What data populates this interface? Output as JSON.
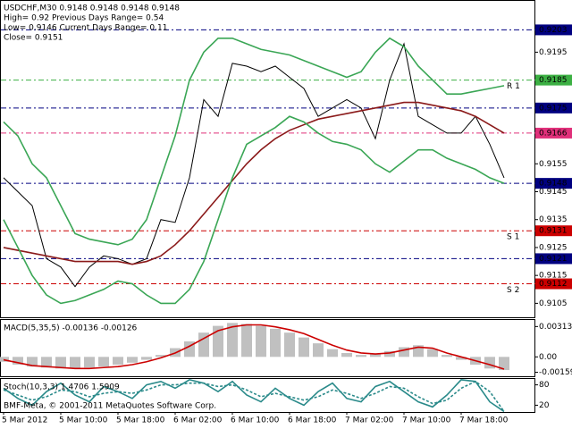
{
  "chart_data": [
    {
      "type": "line",
      "annotations": [
        "USDCHF,M30  0.9148 0.9148 0.9148 0.9148",
        "High= 0.92    Previous Days Range= 0.54",
        "Low= 0.9146    Current Days Range= 0.11",
        "Close= 0.9151"
      ],
      "categories": [
        "5 Mar 2012",
        null,
        null,
        null,
        "5 Mar 10:00",
        null,
        null,
        null,
        "5 Mar 18:00",
        null,
        null,
        null,
        "6 Mar 02:00",
        null,
        null,
        null,
        "6 Mar 10:00",
        null,
        null,
        null,
        "6 Mar 18:00",
        null,
        null,
        null,
        "7 Mar 02:00",
        null,
        null,
        null,
        "7 Mar 10:00",
        null,
        null,
        null,
        "7 Mar 18:00",
        null,
        null,
        null
      ],
      "series": [
        {
          "color": "#000000",
          "values": [
            0.915,
            0.9145,
            0.914,
            0.9121,
            0.9118,
            0.9111,
            0.9118,
            0.9122,
            0.9121,
            0.9119,
            0.9121,
            0.9135,
            0.9134,
            0.915,
            0.9178,
            0.9172,
            0.9191,
            0.919,
            0.9188,
            0.919,
            0.9186,
            0.9182,
            0.9172,
            0.9175,
            0.9178,
            0.9175,
            0.9164,
            0.9185,
            0.9198,
            0.9172,
            0.9169,
            0.9166,
            0.9166,
            0.9172,
            0.9162,
            0.915
          ]
        },
        {
          "color": "#8b1a1a",
          "values": [
            0.9125,
            0.9124,
            0.9123,
            0.9122,
            0.9121,
            0.912,
            0.912,
            0.912,
            0.912,
            0.9119,
            0.912,
            0.9122,
            0.9126,
            0.9131,
            0.9137,
            0.9143,
            0.9149,
            0.9155,
            0.916,
            0.9164,
            0.9167,
            0.9169,
            0.9171,
            0.9172,
            0.9173,
            0.9174,
            0.9175,
            0.9176,
            0.9177,
            0.9177,
            0.9176,
            0.9175,
            0.9174,
            0.9172,
            0.9169,
            0.9166
          ]
        },
        {
          "color": "#3aa655",
          "values": [
            0.917,
            0.9165,
            0.9155,
            0.915,
            0.914,
            0.913,
            0.9128,
            0.9127,
            0.9126,
            0.9128,
            0.9135,
            0.915,
            0.9165,
            0.9185,
            0.9195,
            0.92,
            0.92,
            0.9198,
            0.9196,
            0.9195,
            0.9194,
            0.9192,
            0.919,
            0.9188,
            0.9186,
            0.9188,
            0.9195,
            0.92,
            0.9197,
            0.919,
            0.9185,
            0.918,
            0.918,
            0.9181,
            0.9182,
            0.9183
          ]
        },
        {
          "color": "#3aa655",
          "values": [
            0.9135,
            0.9125,
            0.9115,
            0.9108,
            0.9105,
            0.9106,
            0.9108,
            0.911,
            0.9113,
            0.9112,
            0.9108,
            0.9105,
            0.9105,
            0.911,
            0.912,
            0.9135,
            0.915,
            0.9162,
            0.9165,
            0.9168,
            0.9172,
            0.917,
            0.9166,
            0.9163,
            0.9162,
            0.916,
            0.9155,
            0.9152,
            0.9156,
            0.916,
            0.916,
            0.9157,
            0.9155,
            0.9153,
            0.915,
            0.9148
          ]
        }
      ],
      "levels": [
        {
          "value": 0.9203,
          "color": "#000080"
        },
        {
          "value": 0.9185,
          "color": "#3cb043",
          "label": "R 1"
        },
        {
          "value": 0.9175,
          "color": "#000080"
        },
        {
          "value": 0.9166,
          "color": "#e0307a"
        },
        {
          "value": 0.9148,
          "color": "#000080"
        },
        {
          "value": 0.9131,
          "color": "#cc0000",
          "label": "S 1"
        },
        {
          "value": 0.9121,
          "color": "#000080"
        },
        {
          "value": 0.9112,
          "color": "#cc0000",
          "label": "S 2"
        }
      ],
      "ylim": [
        0.91,
        0.92137
      ],
      "yticks": [
        0.9105,
        0.9115,
        0.9125,
        0.9135,
        0.9145,
        0.9155,
        0.9195
      ]
    },
    {
      "type": "bar",
      "title": "MACD(5,35,5) -0.00136 -0.00126",
      "color": "#c0c0c0",
      "values": [
        -0.0005,
        -0.0008,
        -0.001,
        -0.0011,
        -0.0012,
        -0.0012,
        -0.0011,
        -0.001,
        -0.0008,
        -0.0006,
        -0.0003,
        0.0002,
        0.0009,
        0.0016,
        0.0025,
        0.0032,
        0.0035,
        0.0034,
        0.0032,
        0.0029,
        0.0025,
        0.002,
        0.0014,
        0.0008,
        0.0004,
        0.0002,
        0.0003,
        0.0006,
        0.001,
        0.0012,
        0.0008,
        0.0002,
        -0.0003,
        -0.0008,
        -0.0012,
        -0.00136
      ],
      "series": [
        {
          "color": "#cc0000",
          "values": [
            -0.0003,
            -0.0006,
            -0.0009,
            -0.001,
            -0.0011,
            -0.0012,
            -0.0012,
            -0.0011,
            -0.001,
            -0.0008,
            -0.0005,
            -0.0001,
            0.0004,
            0.0011,
            0.0019,
            0.0027,
            0.0031,
            0.0033,
            0.0033,
            0.0031,
            0.0028,
            0.0024,
            0.0018,
            0.0012,
            0.0007,
            0.0004,
            0.0003,
            0.0004,
            0.0007,
            0.001,
            0.0009,
            0.0004,
            0.0,
            -0.0004,
            -0.0008,
            -0.00126
          ]
        }
      ],
      "ylim": [
        -0.002,
        0.0039
      ],
      "yticks": [
        0.00313,
        {
          "value": 0,
          "label": "0.00"
        },
        -0.00159
      ]
    },
    {
      "type": "line",
      "title": "Stoch(10,3,3) 1.4706 1.5909",
      "series": [
        {
          "color": "#2a8a8a",
          "values": [
            70,
            40,
            20,
            60,
            85,
            50,
            30,
            75,
            60,
            40,
            80,
            90,
            70,
            95,
            85,
            60,
            90,
            50,
            30,
            70,
            40,
            20,
            60,
            85,
            40,
            30,
            75,
            90,
            60,
            30,
            15,
            50,
            95,
            90,
            30,
            1.4706
          ]
        },
        {
          "color": "#2a8a8a",
          "dashed": true,
          "values": [
            65,
            50,
            35,
            45,
            65,
            60,
            45,
            55,
            60,
            55,
            65,
            80,
            80,
            85,
            85,
            75,
            80,
            65,
            45,
            55,
            45,
            35,
            45,
            65,
            55,
            40,
            55,
            75,
            70,
            45,
            25,
            35,
            70,
            90,
            60,
            1.5909
          ]
        }
      ],
      "ylim": [
        0,
        100
      ],
      "yticks": [
        20,
        80
      ]
    }
  ],
  "copyright": "BMF-Meta, © 2001-2011 MetaQuotes Software Corp."
}
